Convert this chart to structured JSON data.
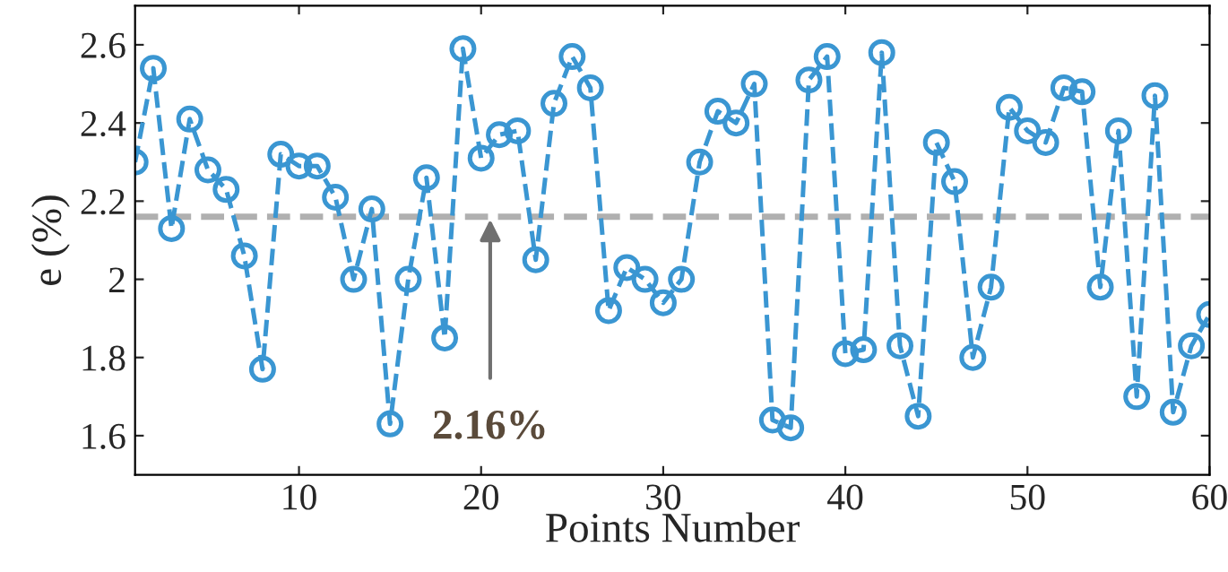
{
  "chart_data": {
    "type": "line",
    "xlabel": "Points Number",
    "ylabel": "e (%)",
    "x": [
      1,
      2,
      3,
      4,
      5,
      6,
      7,
      8,
      9,
      10,
      11,
      12,
      13,
      14,
      15,
      16,
      17,
      18,
      19,
      20,
      21,
      22,
      23,
      24,
      25,
      26,
      27,
      28,
      29,
      30,
      31,
      32,
      33,
      34,
      35,
      36,
      37,
      38,
      39,
      40,
      41,
      42,
      43,
      44,
      45,
      46,
      47,
      48,
      49,
      50,
      51,
      52,
      53,
      54,
      55,
      56,
      57,
      58,
      59,
      60
    ],
    "series": [
      {
        "color": "#3a96d2",
        "values": [
          2.3,
          2.54,
          2.13,
          2.41,
          2.28,
          2.23,
          2.06,
          1.77,
          2.32,
          2.29,
          2.29,
          2.21,
          2.0,
          2.18,
          1.63,
          2.0,
          2.26,
          1.85,
          2.59,
          2.31,
          2.37,
          2.38,
          2.05,
          2.45,
          2.57,
          2.49,
          1.92,
          2.03,
          2.0,
          1.94,
          2.0,
          2.3,
          2.43,
          2.4,
          2.5,
          1.64,
          1.62,
          2.51,
          2.57,
          1.81,
          1.82,
          2.58,
          1.83,
          1.65,
          2.35,
          2.25,
          1.8,
          1.98,
          2.44,
          2.38,
          2.35,
          2.49,
          2.48,
          1.98,
          2.38,
          1.7,
          2.47,
          1.66,
          1.83,
          1.91
        ]
      }
    ],
    "marker": "circle",
    "line_style": "dashed",
    "xlim": [
      1,
      60
    ],
    "ylim": [
      1.5,
      2.7
    ],
    "xticks": [
      10,
      20,
      30,
      40,
      50,
      60
    ],
    "yticks": [
      1.6,
      1.8,
      {
        "value": 2.0,
        "label": "2"
      },
      2.2,
      2.4,
      2.6
    ],
    "ref_lines": [
      {
        "axis": "y",
        "value": 2.16,
        "color": "#b0b0b0",
        "line_style": "dashed"
      }
    ],
    "annotations": [
      {
        "text": "2.16%",
        "x": 20.5,
        "y": 2.16
      }
    ],
    "grid": false,
    "legend": false
  }
}
